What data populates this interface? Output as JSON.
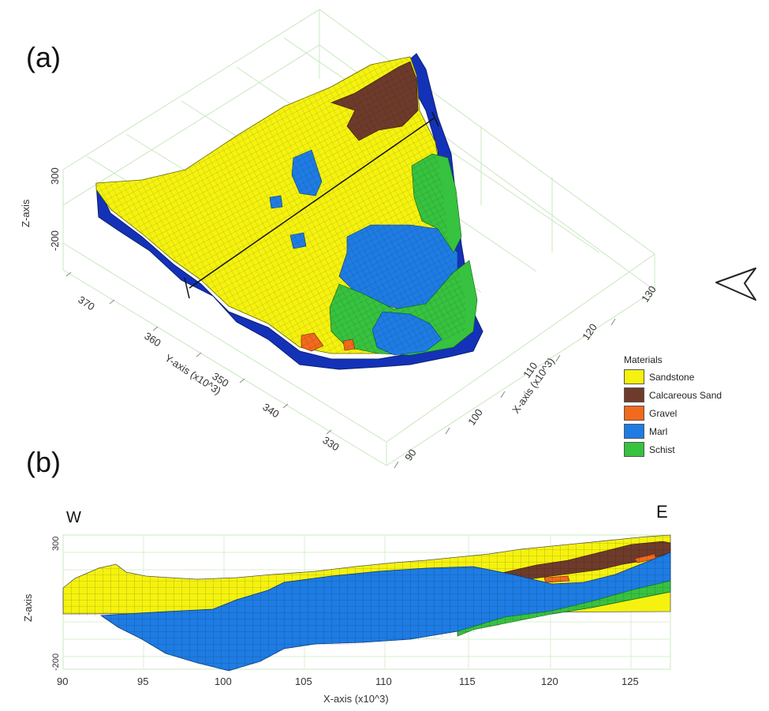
{
  "panels": {
    "a": "(a)",
    "b": "(b)"
  },
  "colors": {
    "sandstone": "#f5f20f",
    "calcareous_sand": "#6e3b2b",
    "gravel": "#f26a1d",
    "marl": "#1e7ce3",
    "schist": "#37c23f",
    "base": "#1432b8"
  },
  "model3d": {
    "z_axis_title": "Z-axis",
    "z_ticks": [
      "300",
      "-200"
    ],
    "y_axis_title": "Y-axis (x10^3)",
    "y_ticks": [
      "370",
      "360",
      "350",
      "340",
      "330"
    ],
    "x_axis_title": "X-axis (x10^3)",
    "x_ticks": [
      "90",
      "100",
      "110",
      "120",
      "130"
    ]
  },
  "legend": {
    "title": "Materials",
    "items": [
      {
        "label": "Sandstone",
        "color": "#f5f20f"
      },
      {
        "label": "Calcareous Sand",
        "color": "#6e3b2b"
      },
      {
        "label": "Gravel",
        "color": "#f26a1d"
      },
      {
        "label": "Marl",
        "color": "#1e7ce3"
      },
      {
        "label": "Schist",
        "color": "#37c23f"
      }
    ]
  },
  "section": {
    "west": "W",
    "east": "E",
    "z_axis_title": "Z-axis",
    "z_ticks": [
      "300",
      "-200"
    ],
    "x_axis_title": "X-axis (x10^3)",
    "x_ticks": [
      "90",
      "95",
      "100",
      "105",
      "110",
      "115",
      "120",
      "125"
    ]
  },
  "compass_icon": "north-arrow-icon"
}
